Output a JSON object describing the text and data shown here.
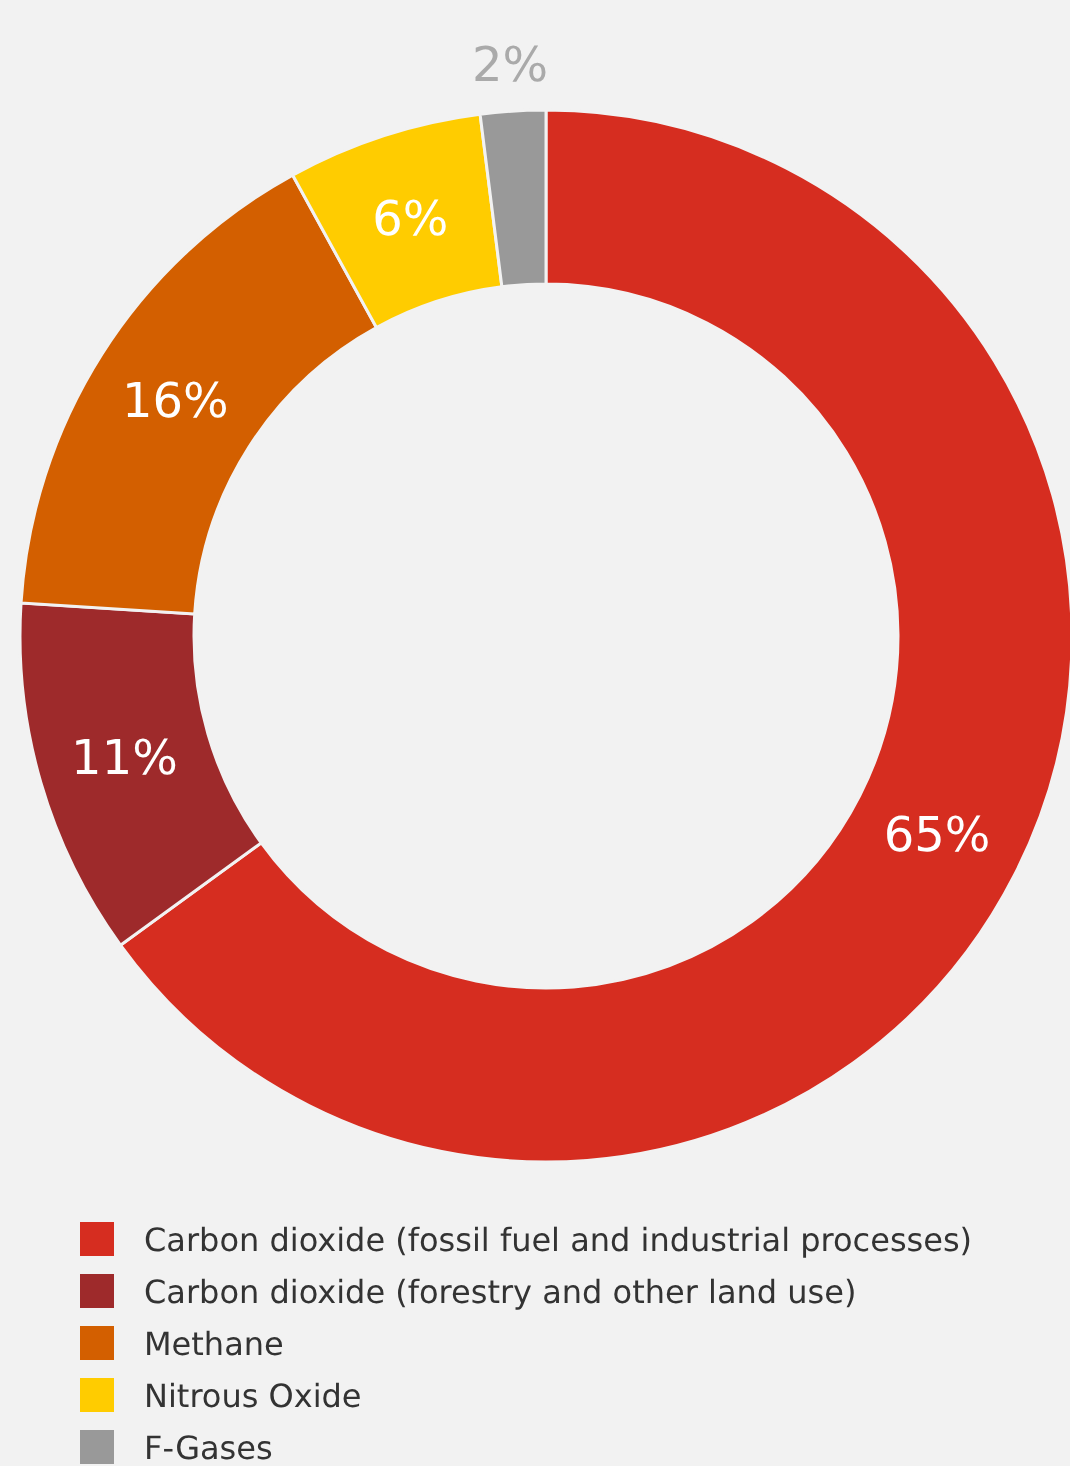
{
  "chart_data": {
    "type": "donut",
    "categories": [
      "Carbon dioxide (fossil fuel and industrial processes)",
      "Carbon dioxide (forestry and other land use)",
      "Methane",
      "Nitrous Oxide",
      "F-Gases"
    ],
    "values": [
      65,
      11,
      16,
      6,
      2
    ],
    "colors": [
      "#d62d20",
      "#9e2a2b",
      "#d35f00",
      "#ffcc00",
      "#999999"
    ],
    "value_labels": [
      "65%",
      "11%",
      "16%",
      "6%",
      "2%"
    ],
    "legend": "bottom"
  }
}
